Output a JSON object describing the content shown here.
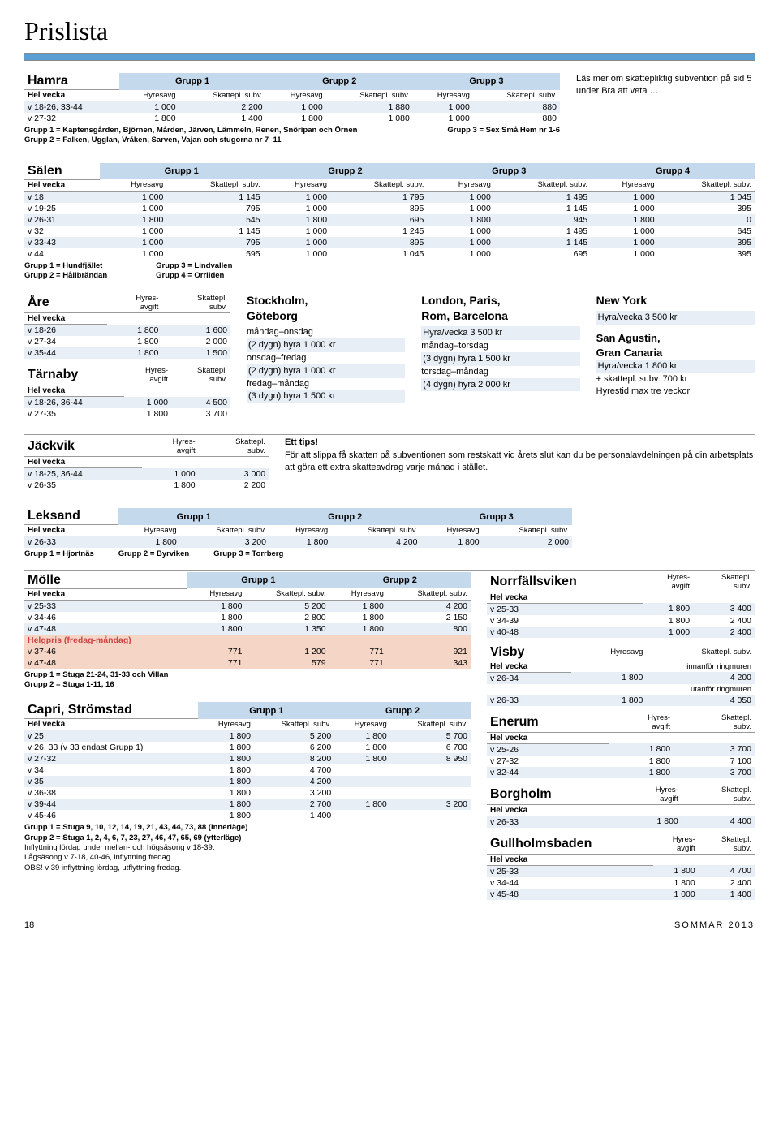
{
  "pageTitle": "Prislista",
  "footerLeft": "18",
  "footerRight": "SOMMAR 2013",
  "readMore": "Läs mer om skattepliktig subvention på sid 5 under Bra att veta …",
  "labels": {
    "helvecka": "Hel vecka",
    "hyresavg": "Hyresavg",
    "skatt": "Skattepl. subv.",
    "hyresavgift": "Hyres-\navgift",
    "skattsubv": "Skattepl.\nsubv."
  },
  "hamra": {
    "title": "Hamra",
    "groups": [
      "Grupp 1",
      "Grupp 2",
      "Grupp 3"
    ],
    "rows": [
      [
        "v 18-26, 33-44",
        "1 000",
        "2 200",
        "1 000",
        "1 880",
        "1 000",
        "880"
      ],
      [
        "v 27-32",
        "1 800",
        "1 400",
        "1 800",
        "1 080",
        "1 000",
        "880"
      ]
    ],
    "notes": [
      "Grupp 1 = Kaptensgården, Björnen, Mården, Järven, Lämmeln, Renen, Snöripan och Örnen",
      "Grupp 2 = Falken, Ugglan, Vråken, Sarven, Vajan och stugorna nr 7–11",
      "Grupp 3 = Sex Små Hem nr 1-6"
    ]
  },
  "salen": {
    "title": "Sälen",
    "groups": [
      "Grupp 1",
      "Grupp 2",
      "Grupp 3",
      "Grupp 4"
    ],
    "rows": [
      [
        "v 18",
        "1 000",
        "1 145",
        "1 000",
        "1 795",
        "1 000",
        "1 495",
        "1 000",
        "1 045"
      ],
      [
        "v 19-25",
        "1 000",
        "795",
        "1 000",
        "895",
        "1 000",
        "1 145",
        "1 000",
        "395"
      ],
      [
        "v 26-31",
        "1 800",
        "545",
        "1 800",
        "695",
        "1 800",
        "945",
        "1 800",
        "0"
      ],
      [
        "v 32",
        "1 000",
        "1 145",
        "1 000",
        "1 245",
        "1 000",
        "1 495",
        "1 000",
        "645"
      ],
      [
        "v 33-43",
        "1 000",
        "795",
        "1 000",
        "895",
        "1 000",
        "1 145",
        "1 000",
        "395"
      ],
      [
        "v 44",
        "1 000",
        "595",
        "1 000",
        "1 045",
        "1 000",
        "695",
        "1 000",
        "395"
      ]
    ],
    "notes": [
      "Grupp 1 = Hundfjället",
      "Grupp 2 = Hållbrändan",
      "Grupp 3 = Lindvallen",
      "Grupp 4 = Orrliden"
    ]
  },
  "are": {
    "title": "Åre",
    "rows": [
      [
        "v 18-26",
        "1 800",
        "1 600"
      ],
      [
        "v 27-34",
        "1 800",
        "2 000"
      ],
      [
        "v 35-44",
        "1 800",
        "1 500"
      ]
    ]
  },
  "tarnaby": {
    "title": "Tärnaby",
    "rows": [
      [
        "v 18-26, 36-44",
        "1 000",
        "4 500"
      ],
      [
        "v 27-35",
        "1 800",
        "3 700"
      ]
    ]
  },
  "jackvik": {
    "title": "Jäckvik",
    "rows": [
      [
        "v 18-25, 36-44",
        "1 000",
        "3 000"
      ],
      [
        "v 26-35",
        "1 800",
        "2 200"
      ]
    ]
  },
  "stockholm": {
    "title": "Stockholm,\nGöteborg",
    "lines": [
      "måndag–onsdag",
      "(2 dygn) hyra 1 000 kr",
      "onsdag–fredag",
      "(2 dygn) hyra 1 000 kr",
      "fredag–måndag",
      "(3 dygn) hyra 1 500 kr"
    ]
  },
  "london": {
    "title": "London, Paris,\nRom, Barcelona",
    "sub": "Hyra/vecka 3 500 kr",
    "lines": [
      "måndag–torsdag",
      "(3 dygn) hyra 1 500 kr",
      "torsdag–måndag",
      "(4 dygn) hyra 2 000 kr"
    ]
  },
  "newyork": {
    "title": "New York",
    "sub": "Hyra/vecka 3 500 kr"
  },
  "sanagustin": {
    "title": "San Agustin,\nGran Canaria",
    "lines": [
      "Hyra/vecka 1 800 kr",
      "+ skattepl. subv. 700 kr",
      "Hyrestid max tre veckor"
    ]
  },
  "tip": {
    "title": "Ett tips!",
    "text": "För att slippa få skatten på subventionen som restskatt vid årets slut kan du be personalavdelningen på din arbetsplats att göra ett extra skatteavdrag varje månad i stället."
  },
  "leksand": {
    "title": "Leksand",
    "groups": [
      "Grupp 1",
      "Grupp 2",
      "Grupp 3"
    ],
    "rows": [
      [
        "v 26-33",
        "1 800",
        "3 200",
        "1 800",
        "4 200",
        "1 800",
        "2 000"
      ]
    ],
    "notes": [
      "Grupp 1 = Hjortnäs",
      "Grupp 2 = Byrviken",
      "Grupp 3 = Torrberg"
    ]
  },
  "molle": {
    "title": "Mölle",
    "groups": [
      "Grupp 1",
      "Grupp 2"
    ],
    "rows": [
      [
        "v 25-33",
        "1 800",
        "5 200",
        "1 800",
        "4 200"
      ],
      [
        "v 34-46",
        "1 800",
        "2 800",
        "1 800",
        "2 150"
      ],
      [
        "v 47-48",
        "1 800",
        "1 350",
        "1 800",
        "800"
      ]
    ],
    "hltitle": "Helgpris (fredag-måndag)",
    "hlrows": [
      [
        "v 37-46",
        "771",
        "1 200",
        "771",
        "921"
      ],
      [
        "v 47-48",
        "771",
        "579",
        "771",
        "343"
      ]
    ],
    "notes": [
      "Grupp 1 = Stuga 21-24, 31-33 och Villan",
      "Grupp 2 = Stuga 1-11, 16"
    ]
  },
  "capri": {
    "title": "Capri, Strömstad",
    "groups": [
      "Grupp 1",
      "Grupp 2"
    ],
    "rows": [
      [
        "v 25",
        "1 800",
        "5 200",
        "1 800",
        "5 700"
      ],
      [
        "v 26, 33 (v 33 endast Grupp 1)",
        "1 800",
        "6 200",
        "1 800",
        "6 700"
      ],
      [
        "v 27-32",
        "1 800",
        "8 200",
        "1 800",
        "8 950"
      ],
      [
        "v 34",
        "1 800",
        "4 700",
        "",
        ""
      ],
      [
        "v 35",
        "1 800",
        "4 200",
        "",
        ""
      ],
      [
        "v 36-38",
        "1 800",
        "3 200",
        "",
        ""
      ],
      [
        "v 39-44",
        "1 800",
        "2 700",
        "1 800",
        "3 200"
      ],
      [
        "v 45-46",
        "1 800",
        "1 400",
        "",
        ""
      ]
    ],
    "notes": [
      "Grupp 1 = Stuga 9, 10, 12, 14, 19, 21, 43, 44, 73, 88 (innerläge)",
      "Grupp 2 = Stuga 1, 2, 4, 6, 7, 23, 27, 46, 47, 65, 69 (ytterläge)",
      "Inflyttning lördag under mellan- och högsäsong v 18-39.",
      "Lågsäsong v 7-18, 40-46, inflyttning fredag.",
      "OBS! v 39 inflyttning lördag, utflyttning fredag."
    ]
  },
  "norrfallsviken": {
    "title": "Norrfällsviken",
    "rows": [
      [
        "v 25-33",
        "1 800",
        "3 400"
      ],
      [
        "v 34-39",
        "1 800",
        "2 400"
      ],
      [
        "v 40-48",
        "1 000",
        "2 400"
      ]
    ]
  },
  "visby": {
    "title": "Visby",
    "sub1": "innanför ringmuren",
    "r1": [
      "v 26-34",
      "1 800",
      "4 200"
    ],
    "sub2": "utanför ringmuren",
    "r2": [
      "v 26-33",
      "1 800",
      "4 050"
    ]
  },
  "enerum": {
    "title": "Enerum",
    "rows": [
      [
        "v 25-26",
        "1 800",
        "3 700"
      ],
      [
        "v 27-32",
        "1 800",
        "7 100"
      ],
      [
        "v 32-44",
        "1 800",
        "3 700"
      ]
    ]
  },
  "borgholm": {
    "title": "Borgholm",
    "rows": [
      [
        "v 26-33",
        "1 800",
        "4 400"
      ]
    ]
  },
  "gullholmsbaden": {
    "title": "Gullholmsbaden",
    "rows": [
      [
        "v 25-33",
        "1 800",
        "4 700"
      ],
      [
        "v 34-44",
        "1 800",
        "2 400"
      ],
      [
        "v 45-48",
        "1 000",
        "1 400"
      ]
    ]
  }
}
